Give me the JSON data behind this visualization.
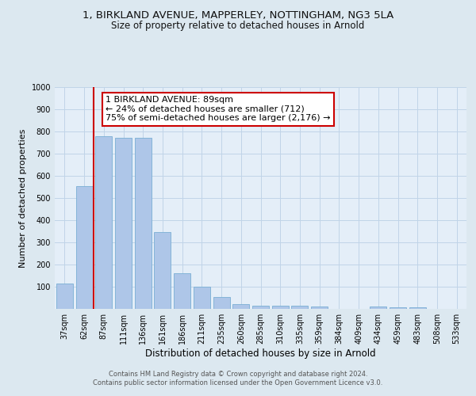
{
  "title1": "1, BIRKLAND AVENUE, MAPPERLEY, NOTTINGHAM, NG3 5LA",
  "title2": "Size of property relative to detached houses in Arnold",
  "xlabel": "Distribution of detached houses by size in Arnold",
  "ylabel": "Number of detached properties",
  "categories": [
    "37sqm",
    "62sqm",
    "87sqm",
    "111sqm",
    "136sqm",
    "161sqm",
    "186sqm",
    "211sqm",
    "235sqm",
    "260sqm",
    "285sqm",
    "310sqm",
    "335sqm",
    "359sqm",
    "384sqm",
    "409sqm",
    "434sqm",
    "459sqm",
    "483sqm",
    "508sqm",
    "533sqm"
  ],
  "values": [
    115,
    555,
    780,
    770,
    770,
    345,
    160,
    100,
    52,
    22,
    15,
    13,
    13,
    10,
    0,
    0,
    10,
    8,
    8,
    0,
    0
  ],
  "bar_color": "#aec6e8",
  "bar_edgecolor": "#7aafd4",
  "vline_x": 2.0,
  "vline_color": "#cc0000",
  "annotation_text": "1 BIRKLAND AVENUE: 89sqm\n← 24% of detached houses are smaller (712)\n75% of semi-detached houses are larger (2,176) →",
  "annotation_box_color": "#ffffff",
  "annotation_box_edgecolor": "#cc0000",
  "footer": "Contains HM Land Registry data © Crown copyright and database right 2024.\nContains public sector information licensed under the Open Government Licence v3.0.",
  "ylim": [
    0,
    1000
  ],
  "yticks": [
    0,
    100,
    200,
    300,
    400,
    500,
    600,
    700,
    800,
    900,
    1000
  ],
  "grid_color": "#c0d4e8",
  "background_color": "#dce8f0",
  "plot_bg_color": "#e4eef8",
  "title1_fontsize": 9.5,
  "title2_fontsize": 8.5,
  "ylabel_fontsize": 8,
  "xlabel_fontsize": 8.5,
  "tick_fontsize": 7,
  "footer_fontsize": 6,
  "ann_fontsize": 8
}
